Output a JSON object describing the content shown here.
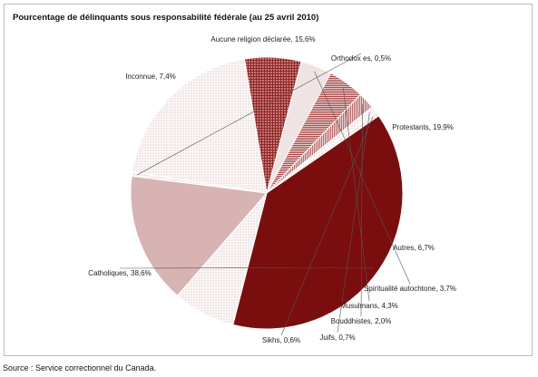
{
  "chart_data": {
    "type": "pie",
    "title": "Pourcentage de délinquants sous responsabilité fédérale (au 25 avril 2010)",
    "slices": [
      {
        "label": "Aucune religion déclarée, 15,6%",
        "value": 15.6,
        "color": "#d7b3b3",
        "pattern": "solid"
      },
      {
        "label": "Orthodox es, 0,5%",
        "value": 0.5,
        "color": "#f6ecec",
        "pattern": "dots"
      },
      {
        "label": "Protestants, 19,9%",
        "value": 19.9,
        "color": "#f4f0f0",
        "pattern": "dots"
      },
      {
        "label": "Autres, 6,7%",
        "value": 6.7,
        "color": "#a94040",
        "pattern": "grid"
      },
      {
        "label": "Spiritualité autochtone, 3,7%",
        "value": 3.7,
        "color": "#efe3e3",
        "pattern": "solid"
      },
      {
        "label": "Musulmans, 4,3%",
        "value": 4.3,
        "color": "#b85a5a",
        "pattern": "hlines"
      },
      {
        "label": "Bouddhistes, 2,0%",
        "value": 2.0,
        "color": "#c98a8a",
        "pattern": "vlines"
      },
      {
        "label": "Juifs, 0,7%",
        "value": 0.7,
        "color": "#e2c6c6",
        "pattern": "dots"
      },
      {
        "label": "Sikhs, 0,6%",
        "value": 0.6,
        "color": "#f2e6e6",
        "pattern": "dots"
      },
      {
        "label": "Catholiques, 38,6%",
        "value": 38.6,
        "color": "#7a0e0e",
        "pattern": "solid"
      },
      {
        "label": "Inconnue, 7,4%",
        "value": 7.4,
        "color": "#f5efef",
        "pattern": "dots"
      }
    ]
  },
  "footer": {
    "source": "Source : Service correctionnel du Canada."
  }
}
